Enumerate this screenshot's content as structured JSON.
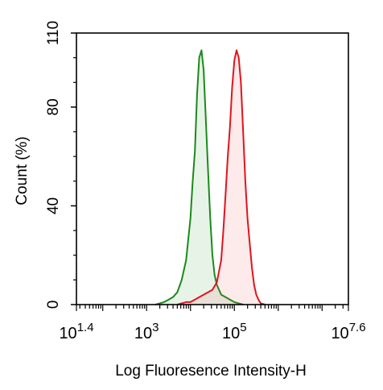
{
  "chart_data": {
    "type": "area",
    "title": "",
    "xlabel": "Log Fluoresence Intensity-H",
    "ylabel": "Count (%)",
    "x_scale": "log10",
    "xlim_log10": [
      1.4,
      7.6
    ],
    "ylim": [
      0,
      110
    ],
    "grid": false,
    "legend": "none",
    "x_tick_labels": [
      {
        "base": "10",
        "exp": "1.4",
        "log10": 1.4
      },
      {
        "base": "10",
        "exp": "3",
        "log10": 3
      },
      {
        "base": "10",
        "exp": "5",
        "log10": 5
      },
      {
        "base": "10",
        "exp": "7.6",
        "log10": 7.6
      }
    ],
    "y_ticks": [
      0,
      40,
      80,
      110
    ],
    "y_tick_labels": [
      "0",
      "40",
      "80",
      "110"
    ],
    "series": [
      {
        "color": "#1a8a1a",
        "fill": "rgba(26,138,26,0.10)",
        "x_log10": [
          3.2,
          3.4,
          3.5,
          3.6,
          3.7,
          3.8,
          3.9,
          4.0,
          4.05,
          4.1,
          4.15,
          4.2,
          4.25,
          4.3,
          4.35,
          4.4,
          4.45,
          4.5,
          4.55,
          4.6,
          4.65,
          4.7,
          4.8,
          4.9,
          5.0,
          5.1,
          5.2
        ],
        "y": [
          0,
          1,
          2,
          3,
          5,
          10,
          18,
          35,
          50,
          62,
          85,
          100,
          103,
          95,
          75,
          55,
          35,
          20,
          12,
          8,
          6,
          4,
          3,
          2,
          1,
          0.5,
          0
        ]
      },
      {
        "color": "#e0141e",
        "fill": "rgba(240,80,90,0.12)",
        "x_log10": [
          3.7,
          3.8,
          3.9,
          4.0,
          4.1,
          4.2,
          4.3,
          4.4,
          4.5,
          4.6,
          4.7,
          4.75,
          4.8,
          4.85,
          4.9,
          4.95,
          5.0,
          5.05,
          5.1,
          5.15,
          5.2,
          5.25,
          5.3,
          5.35,
          5.4,
          5.45,
          5.5,
          5.55,
          5.6,
          5.7
        ],
        "y": [
          0,
          0.5,
          1,
          1,
          2,
          3,
          4,
          5,
          6,
          9,
          18,
          30,
          45,
          60,
          72,
          88,
          99,
          103,
          100,
          90,
          70,
          50,
          35,
          25,
          15,
          8,
          4,
          2,
          0.5,
          0
        ]
      }
    ]
  }
}
